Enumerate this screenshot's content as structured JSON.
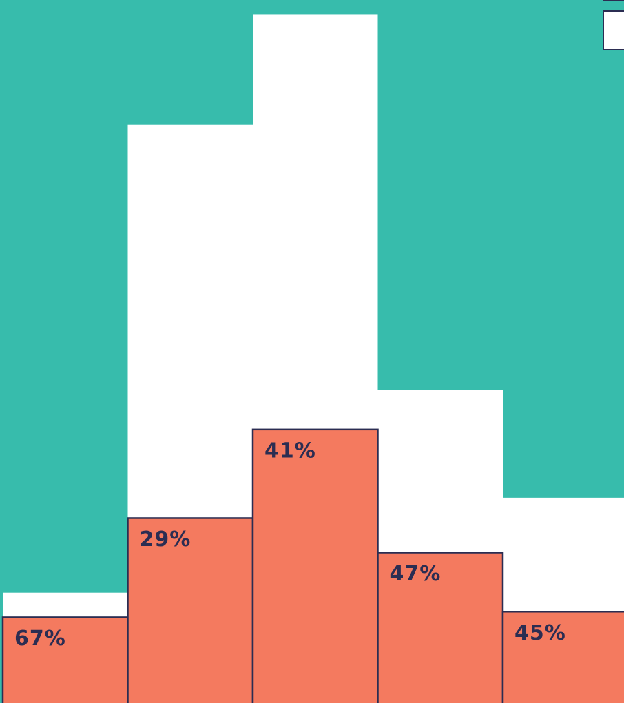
{
  "chart_data": {
    "type": "bar",
    "stacked": true,
    "series": [
      {
        "color": "#f47a5f",
        "values": [
          12.2,
          26.3,
          38.9,
          21.4,
          13.0
        ],
        "labels": [
          "67%",
          "29%",
          "41%",
          "47%",
          "45%"
        ]
      },
      {
        "color": "#ffffff",
        "values": [
          3.5,
          56.0,
          59.0,
          23.1,
          16.2
        ]
      }
    ],
    "ylim": [
      0,
      100
    ]
  }
}
